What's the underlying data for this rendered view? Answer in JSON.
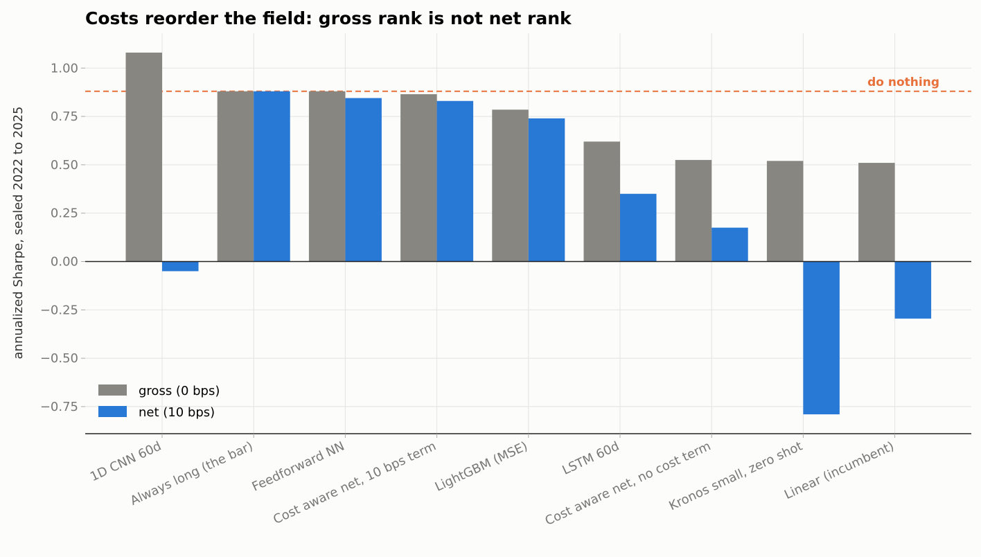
{
  "chart_data": {
    "type": "bar",
    "title": "Costs reorder the field: gross rank is not net rank",
    "xlabel": "",
    "ylabel": "annualized Sharpe, sealed 2022 to 2025",
    "categories": [
      "1D CNN 60d",
      "Always long (the bar)",
      "Feedforward NN",
      "Cost aware net, 10 bps term",
      "LightGBM (MSE)",
      "LSTM 60d",
      "Cost aware net, no cost term",
      "Kronos small, zero shot",
      "Linear (incumbent)"
    ],
    "series": [
      {
        "name": "gross (0 bps)",
        "color": "#878681",
        "values": [
          1.08,
          0.88,
          0.88,
          0.865,
          0.785,
          0.62,
          0.525,
          0.52,
          0.51
        ]
      },
      {
        "name": "net (10 bps)",
        "color": "#2878d6",
        "values": [
          -0.05,
          0.88,
          0.845,
          0.83,
          0.74,
          0.35,
          0.175,
          -0.79,
          -0.295
        ]
      }
    ],
    "reference_line": {
      "label": "do nothing",
      "value": 0.88,
      "color": "#e8703a",
      "style": "dashed"
    },
    "ylim": [
      -0.89,
      1.18
    ],
    "yticks": [
      "1.00",
      "0.75",
      "0.50",
      "0.25",
      "0.00",
      "−0.25",
      "−0.50",
      "−0.75"
    ],
    "ytick_values": [
      1.0,
      0.75,
      0.5,
      0.25,
      0.0,
      -0.25,
      -0.5,
      -0.75
    ],
    "grid": true,
    "legend_position": "lower-left"
  }
}
